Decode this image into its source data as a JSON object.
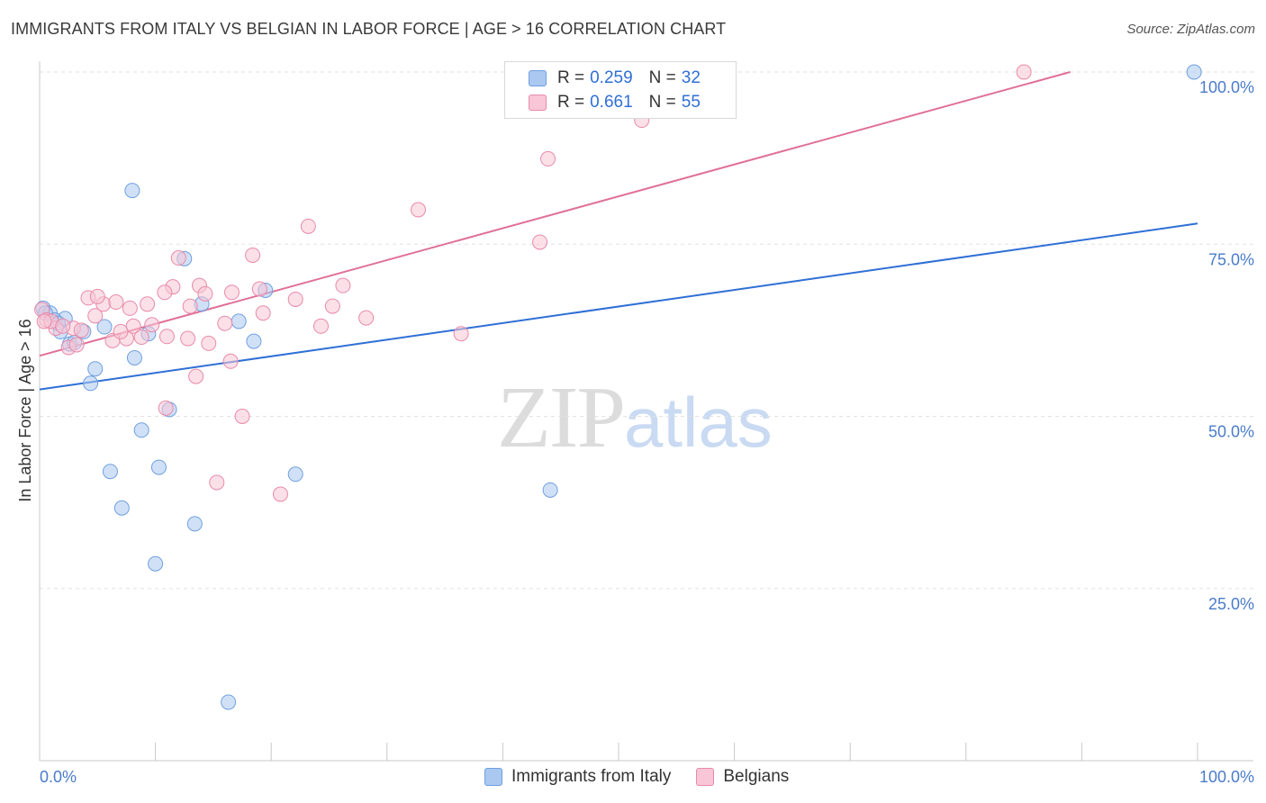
{
  "title": "IMMIGRANTS FROM ITALY VS BELGIAN IN LABOR FORCE | AGE > 16 CORRELATION CHART",
  "source": "Source: ZipAtlas.com",
  "watermark": {
    "zip": "ZIP",
    "atlas": "atlas"
  },
  "legend_top": {
    "rows": [
      {
        "r_label": "R =",
        "r_value": "0.259",
        "n_label": "N =",
        "n_value": "32",
        "color": "#aac8f0",
        "border": "#6f9fe0"
      },
      {
        "r_label": "R =",
        "r_value": "0.661",
        "n_label": "N =",
        "n_value": "55",
        "color": "#f8c6d6",
        "border": "#e98aa9"
      }
    ]
  },
  "legend_bottom": [
    {
      "label": "Immigrants from Italy",
      "color": "#aac8f0",
      "border": "#6f9fe0"
    },
    {
      "label": "Belgians",
      "color": "#f8c6d6",
      "border": "#e98aa9"
    }
  ],
  "chart_data": {
    "type": "scatter",
    "title": "IMMIGRANTS FROM ITALY VS BELGIAN IN LABOR FORCE | AGE > 16 CORRELATION CHART",
    "xlabel": "",
    "ylabel": "In Labor Force | Age > 16",
    "xlim": [
      0,
      100
    ],
    "ylim": [
      0,
      100
    ],
    "x_tick_labels": [
      "0.0%",
      "100.0%"
    ],
    "y_tick_labels": [
      "25.0%",
      "50.0%",
      "75.0%",
      "100.0%"
    ],
    "y_ticks": [
      25,
      50,
      75,
      100
    ],
    "grid": true,
    "series": [
      {
        "name": "Immigrants from Italy",
        "color": "#6f9fe0",
        "fill": "#aac8f0",
        "trend": {
          "x": [
            0,
            100
          ],
          "y": [
            53.9,
            78.0
          ],
          "color": "#2f6fd6"
        },
        "points": [
          [
            0.3,
            65.7
          ],
          [
            0.9,
            65.0
          ],
          [
            1.3,
            64.0
          ],
          [
            1.8,
            62.3
          ],
          [
            2.2,
            64.2
          ],
          [
            2.6,
            60.5
          ],
          [
            3.8,
            62.3
          ],
          [
            4.4,
            54.8
          ],
          [
            5.6,
            63.0
          ],
          [
            6.1,
            42.0
          ],
          [
            7.1,
            36.7
          ],
          [
            8.2,
            58.5
          ],
          [
            8.8,
            48.0
          ],
          [
            9.4,
            62.0
          ],
          [
            10.0,
            28.6
          ],
          [
            10.3,
            42.6
          ],
          [
            11.2,
            51.0
          ],
          [
            12.5,
            72.9
          ],
          [
            13.4,
            34.4
          ],
          [
            14.0,
            66.3
          ],
          [
            16.3,
            8.5
          ],
          [
            17.2,
            63.8
          ],
          [
            18.5,
            60.9
          ],
          [
            19.5,
            68.3
          ],
          [
            22.1,
            41.6
          ],
          [
            44.1,
            39.3
          ],
          [
            99.7,
            100.0
          ],
          [
            0.5,
            65.0
          ],
          [
            1.6,
            63.5
          ],
          [
            3.0,
            60.7
          ],
          [
            4.8,
            56.9
          ],
          [
            8.0,
            82.8
          ]
        ]
      },
      {
        "name": "Belgians",
        "color": "#e98aa9",
        "fill": "#f8c6d6",
        "trend": {
          "x": [
            0,
            89
          ],
          "y": [
            58.8,
            100.0
          ],
          "color": "#e07097"
        },
        "points": [
          [
            0.2,
            65.5
          ],
          [
            0.6,
            64.0
          ],
          [
            1.4,
            62.8
          ],
          [
            2.5,
            60.0
          ],
          [
            2.9,
            62.8
          ],
          [
            3.2,
            60.4
          ],
          [
            4.2,
            67.2
          ],
          [
            4.8,
            64.6
          ],
          [
            5.5,
            66.3
          ],
          [
            6.3,
            61.0
          ],
          [
            7.5,
            61.3
          ],
          [
            8.1,
            63.1
          ],
          [
            8.8,
            61.5
          ],
          [
            9.7,
            63.3
          ],
          [
            10.9,
            51.2
          ],
          [
            11.5,
            68.8
          ],
          [
            12.0,
            73.0
          ],
          [
            13.5,
            55.8
          ],
          [
            13.8,
            69.0
          ],
          [
            14.6,
            60.6
          ],
          [
            15.3,
            40.4
          ],
          [
            16.0,
            63.5
          ],
          [
            16.6,
            68.0
          ],
          [
            17.5,
            50.0
          ],
          [
            18.4,
            73.4
          ],
          [
            19.3,
            65.0
          ],
          [
            20.8,
            38.7
          ],
          [
            22.1,
            67.0
          ],
          [
            23.2,
            77.6
          ],
          [
            24.3,
            63.1
          ],
          [
            25.3,
            66.0
          ],
          [
            26.2,
            69.0
          ],
          [
            28.2,
            64.3
          ],
          [
            32.7,
            80.0
          ],
          [
            36.4,
            62.0
          ],
          [
            43.2,
            75.3
          ],
          [
            43.9,
            87.4
          ],
          [
            52.0,
            93.0
          ],
          [
            85.0,
            100.0
          ],
          [
            1.0,
            63.8
          ],
          [
            6.6,
            66.6
          ],
          [
            7.8,
            65.7
          ],
          [
            9.3,
            66.3
          ],
          [
            10.8,
            68.0
          ],
          [
            12.8,
            61.3
          ],
          [
            14.3,
            67.8
          ],
          [
            16.5,
            58.0
          ],
          [
            19.0,
            68.5
          ],
          [
            2.0,
            63.1
          ],
          [
            3.6,
            62.5
          ],
          [
            5.0,
            67.4
          ],
          [
            7.0,
            62.3
          ],
          [
            11.0,
            61.6
          ],
          [
            13.0,
            66.0
          ],
          [
            0.4,
            63.8
          ]
        ]
      }
    ]
  }
}
